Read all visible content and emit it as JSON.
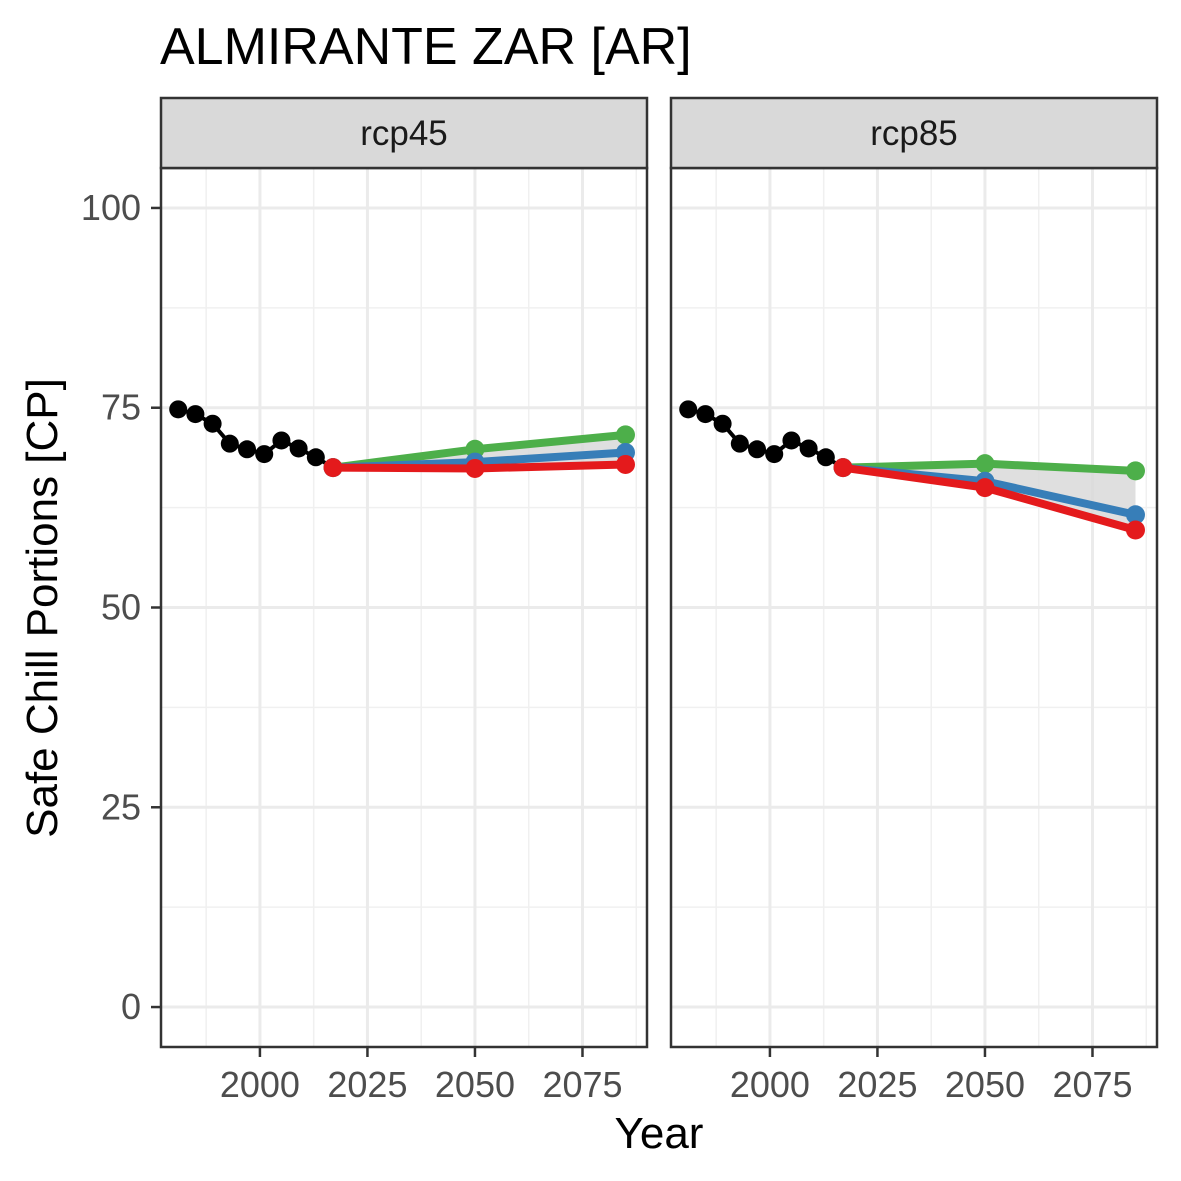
{
  "chart_data": {
    "type": "line",
    "title": "ALMIRANTE ZAR [AR]",
    "xlabel": "Year",
    "ylabel": "Safe Chill Portions [CP]",
    "xlim": [
      1977,
      2090
    ],
    "ylim": [
      -5,
      105
    ],
    "x_ticks": [
      2000,
      2025,
      2050,
      2075
    ],
    "y_ticks": [
      0,
      25,
      50,
      75,
      100
    ],
    "grid": true,
    "legend": "none",
    "colors": {
      "historic": "#000000",
      "green": "#4DAF4A",
      "blue": "#377EB8",
      "red": "#E41A1C",
      "ribbon": "#D9D9D9"
    },
    "panels": [
      {
        "strip": "rcp45",
        "historic": {
          "x": [
            1981,
            1985,
            1989,
            1993,
            1997,
            2001,
            2005,
            2009,
            2013,
            2017
          ],
          "y": [
            74.8,
            74.2,
            73.0,
            70.5,
            69.8,
            69.2,
            70.9,
            69.9,
            68.8,
            67.5
          ]
        },
        "series": [
          {
            "key": "green",
            "x": [
              2017,
              2050,
              2085
            ],
            "y": [
              67.5,
              69.8,
              71.6
            ]
          },
          {
            "key": "blue",
            "x": [
              2017,
              2050,
              2085
            ],
            "y": [
              67.5,
              68.2,
              69.4
            ]
          },
          {
            "key": "red",
            "x": [
              2017,
              2050,
              2085
            ],
            "y": [
              67.5,
              67.4,
              67.9
            ]
          }
        ]
      },
      {
        "strip": "rcp85",
        "historic": {
          "x": [
            1981,
            1985,
            1989,
            1993,
            1997,
            2001,
            2005,
            2009,
            2013,
            2017
          ],
          "y": [
            74.8,
            74.2,
            73.0,
            70.5,
            69.8,
            69.2,
            70.9,
            69.9,
            68.8,
            67.5
          ]
        },
        "series": [
          {
            "key": "green",
            "x": [
              2017,
              2050,
              2085
            ],
            "y": [
              67.5,
              68.0,
              67.1
            ]
          },
          {
            "key": "blue",
            "x": [
              2017,
              2050,
              2085
            ],
            "y": [
              67.5,
              65.8,
              61.6
            ]
          },
          {
            "key": "red",
            "x": [
              2017,
              2050,
              2085
            ],
            "y": [
              67.5,
              65.0,
              59.7
            ]
          }
        ]
      }
    ]
  }
}
